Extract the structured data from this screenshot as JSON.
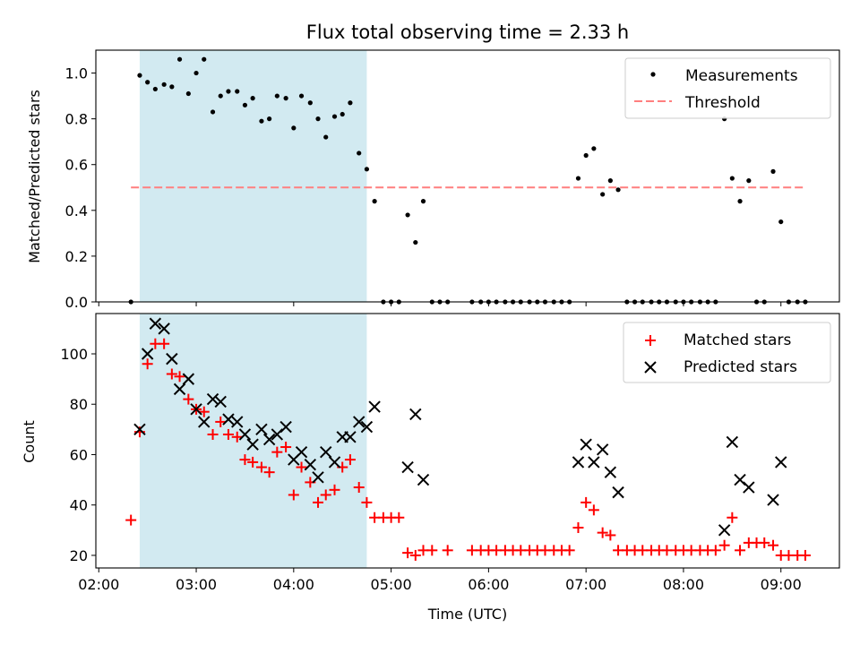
{
  "chart_data": [
    {
      "type": "scatter",
      "title": "Flux total observing time = 2.33 h",
      "xlabel": "",
      "ylabel": "Matched/Predicted stars",
      "ylim": [
        0,
        1.1
      ],
      "yticks": [
        "0.0",
        "0.2",
        "0.4",
        "0.6",
        "0.8",
        "1.0"
      ],
      "ytick_values": [
        0,
        0.2,
        0.4,
        0.6,
        0.8,
        1.0
      ],
      "xlim_hours": [
        1.97,
        9.6
      ],
      "legend_position": "top-right",
      "highlight_span_hours": [
        2.42,
        4.75
      ],
      "threshold": 0.5,
      "threshold_range_hours": [
        2.33,
        9.25
      ],
      "legend": [
        "Measurements",
        "Threshold"
      ],
      "series": [
        {
          "name": "Measurements",
          "marker": "dot",
          "color": "#000000",
          "points": [
            [
              2.33,
              0
            ],
            [
              2.42,
              0.99
            ],
            [
              2.5,
              0.96
            ],
            [
              2.58,
              0.93
            ],
            [
              2.67,
              0.95
            ],
            [
              2.75,
              0.94
            ],
            [
              2.83,
              1.06
            ],
            [
              2.92,
              0.91
            ],
            [
              3.0,
              1.0
            ],
            [
              3.08,
              1.06
            ],
            [
              3.17,
              0.83
            ],
            [
              3.25,
              0.9
            ],
            [
              3.33,
              0.92
            ],
            [
              3.42,
              0.92
            ],
            [
              3.5,
              0.86
            ],
            [
              3.58,
              0.89
            ],
            [
              3.67,
              0.79
            ],
            [
              3.75,
              0.8
            ],
            [
              3.83,
              0.9
            ],
            [
              3.92,
              0.89
            ],
            [
              4.0,
              0.76
            ],
            [
              4.08,
              0.9
            ],
            [
              4.17,
              0.87
            ],
            [
              4.25,
              0.8
            ],
            [
              4.33,
              0.72
            ],
            [
              4.42,
              0.81
            ],
            [
              4.5,
              0.82
            ],
            [
              4.58,
              0.87
            ],
            [
              4.67,
              0.65
            ],
            [
              4.75,
              0.58
            ],
            [
              4.83,
              0.44
            ],
            [
              4.92,
              0
            ],
            [
              5.0,
              0
            ],
            [
              5.08,
              0
            ],
            [
              5.17,
              0.38
            ],
            [
              5.25,
              0.26
            ],
            [
              5.33,
              0.44
            ],
            [
              5.42,
              0
            ],
            [
              5.5,
              0
            ],
            [
              5.58,
              0
            ],
            [
              5.83,
              0
            ],
            [
              5.92,
              0
            ],
            [
              6.0,
              0
            ],
            [
              6.08,
              0
            ],
            [
              6.17,
              0
            ],
            [
              6.25,
              0
            ],
            [
              6.33,
              0
            ],
            [
              6.42,
              0
            ],
            [
              6.5,
              0
            ],
            [
              6.58,
              0
            ],
            [
              6.67,
              0
            ],
            [
              6.75,
              0
            ],
            [
              6.83,
              0
            ],
            [
              6.92,
              0.54
            ],
            [
              7.0,
              0.64
            ],
            [
              7.08,
              0.67
            ],
            [
              7.17,
              0.47
            ],
            [
              7.25,
              0.53
            ],
            [
              7.33,
              0.49
            ],
            [
              7.42,
              0
            ],
            [
              7.5,
              0
            ],
            [
              7.58,
              0
            ],
            [
              7.67,
              0
            ],
            [
              7.75,
              0
            ],
            [
              7.83,
              0
            ],
            [
              7.92,
              0
            ],
            [
              8.0,
              0
            ],
            [
              8.08,
              0
            ],
            [
              8.17,
              0
            ],
            [
              8.25,
              0
            ],
            [
              8.33,
              0
            ],
            [
              8.42,
              0.8
            ],
            [
              8.5,
              0.54
            ],
            [
              8.58,
              0.44
            ],
            [
              8.67,
              0.53
            ],
            [
              8.75,
              0
            ],
            [
              8.83,
              0
            ],
            [
              8.92,
              0.57
            ],
            [
              9.0,
              0.35
            ],
            [
              9.08,
              0
            ],
            [
              9.17,
              0
            ],
            [
              9.25,
              0
            ]
          ]
        }
      ]
    },
    {
      "type": "scatter",
      "title": "",
      "xlabel": "Time (UTC)",
      "ylabel": "Count",
      "ylim": [
        15,
        116
      ],
      "yticks": [
        "20",
        "40",
        "60",
        "80",
        "100"
      ],
      "ytick_values": [
        20,
        40,
        60,
        80,
        100
      ],
      "xlim_hours": [
        1.97,
        9.6
      ],
      "xticks": [
        "02:00",
        "03:00",
        "04:00",
        "05:00",
        "06:00",
        "07:00",
        "08:00",
        "09:00"
      ],
      "xtick_hours": [
        2,
        3,
        4,
        5,
        6,
        7,
        8,
        9
      ],
      "legend_position": "top-right",
      "highlight_span_hours": [
        2.42,
        4.75
      ],
      "legend": [
        "Matched stars",
        "Predicted stars"
      ],
      "series": [
        {
          "name": "Matched stars",
          "marker": "plus",
          "color": "#ff0000",
          "points": [
            [
              2.33,
              34
            ],
            [
              2.42,
              69
            ],
            [
              2.5,
              96
            ],
            [
              2.58,
              104
            ],
            [
              2.67,
              104
            ],
            [
              2.75,
              92
            ],
            [
              2.83,
              91
            ],
            [
              2.92,
              82
            ],
            [
              3.0,
              78
            ],
            [
              3.08,
              77
            ],
            [
              3.17,
              68
            ],
            [
              3.25,
              73
            ],
            [
              3.33,
              68
            ],
            [
              3.42,
              67
            ],
            [
              3.5,
              58
            ],
            [
              3.58,
              57
            ],
            [
              3.67,
              55
            ],
            [
              3.75,
              53
            ],
            [
              3.83,
              61
            ],
            [
              3.92,
              63
            ],
            [
              4.0,
              44
            ],
            [
              4.08,
              55
            ],
            [
              4.17,
              49
            ],
            [
              4.25,
              41
            ],
            [
              4.33,
              44
            ],
            [
              4.42,
              46
            ],
            [
              4.5,
              55
            ],
            [
              4.58,
              58
            ],
            [
              4.67,
              47
            ],
            [
              4.75,
              41
            ],
            [
              4.83,
              35
            ],
            [
              4.92,
              35
            ],
            [
              5.0,
              35
            ],
            [
              5.08,
              35
            ],
            [
              5.17,
              21
            ],
            [
              5.25,
              20
            ],
            [
              5.33,
              22
            ],
            [
              5.42,
              22
            ],
            [
              5.58,
              22
            ],
            [
              5.83,
              22
            ],
            [
              5.92,
              22
            ],
            [
              6.0,
              22
            ],
            [
              6.08,
              22
            ],
            [
              6.17,
              22
            ],
            [
              6.25,
              22
            ],
            [
              6.33,
              22
            ],
            [
              6.42,
              22
            ],
            [
              6.5,
              22
            ],
            [
              6.58,
              22
            ],
            [
              6.67,
              22
            ],
            [
              6.75,
              22
            ],
            [
              6.83,
              22
            ],
            [
              6.92,
              31
            ],
            [
              7.0,
              41
            ],
            [
              7.08,
              38
            ],
            [
              7.17,
              29
            ],
            [
              7.25,
              28
            ],
            [
              7.33,
              22
            ],
            [
              7.42,
              22
            ],
            [
              7.5,
              22
            ],
            [
              7.58,
              22
            ],
            [
              7.67,
              22
            ],
            [
              7.75,
              22
            ],
            [
              7.83,
              22
            ],
            [
              7.92,
              22
            ],
            [
              8.0,
              22
            ],
            [
              8.08,
              22
            ],
            [
              8.17,
              22
            ],
            [
              8.25,
              22
            ],
            [
              8.33,
              22
            ],
            [
              8.42,
              24
            ],
            [
              8.5,
              35
            ],
            [
              8.58,
              22
            ],
            [
              8.67,
              25
            ],
            [
              8.75,
              25
            ],
            [
              8.83,
              25
            ],
            [
              8.92,
              24
            ],
            [
              9.0,
              20
            ],
            [
              9.08,
              20
            ],
            [
              9.17,
              20
            ],
            [
              9.25,
              20
            ]
          ]
        },
        {
          "name": "Predicted stars",
          "marker": "x",
          "color": "#000000",
          "points": [
            [
              2.42,
              70
            ],
            [
              2.5,
              100
            ],
            [
              2.58,
              112
            ],
            [
              2.67,
              110
            ],
            [
              2.75,
              98
            ],
            [
              2.83,
              86
            ],
            [
              2.92,
              90
            ],
            [
              3.0,
              78
            ],
            [
              3.08,
              73
            ],
            [
              3.17,
              82
            ],
            [
              3.25,
              81
            ],
            [
              3.33,
              74
            ],
            [
              3.42,
              73
            ],
            [
              3.5,
              68
            ],
            [
              3.58,
              64
            ],
            [
              3.67,
              70
            ],
            [
              3.75,
              66
            ],
            [
              3.83,
              68
            ],
            [
              3.92,
              71
            ],
            [
              4.0,
              58
            ],
            [
              4.08,
              61
            ],
            [
              4.17,
              56
            ],
            [
              4.25,
              51
            ],
            [
              4.33,
              61
            ],
            [
              4.42,
              57
            ],
            [
              4.5,
              67
            ],
            [
              4.58,
              67
            ],
            [
              4.67,
              73
            ],
            [
              4.75,
              71
            ],
            [
              4.83,
              79
            ],
            [
              5.17,
              55
            ],
            [
              5.25,
              76
            ],
            [
              5.33,
              50
            ],
            [
              6.92,
              57
            ],
            [
              7.0,
              64
            ],
            [
              7.08,
              57
            ],
            [
              7.17,
              62
            ],
            [
              7.25,
              53
            ],
            [
              7.33,
              45
            ],
            [
              8.42,
              30
            ],
            [
              8.5,
              65
            ],
            [
              8.58,
              50
            ],
            [
              8.67,
              47
            ],
            [
              8.92,
              42
            ],
            [
              9.0,
              57
            ]
          ]
        }
      ]
    }
  ]
}
